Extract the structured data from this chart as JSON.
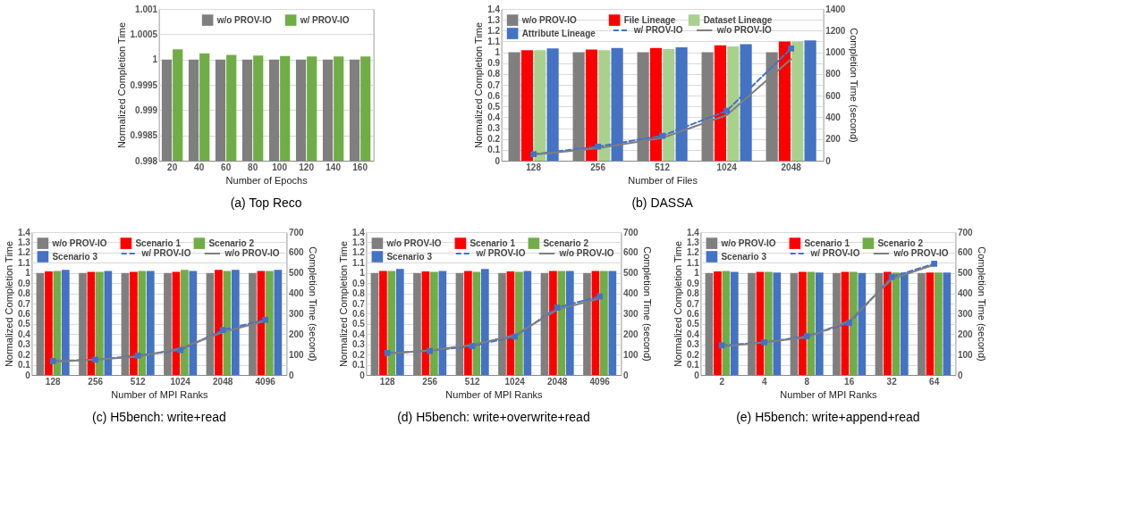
{
  "chart_data": [
    {
      "type": "bar",
      "title": "(a) Top Reco",
      "xlabel": "Number of Epochs",
      "ylabel": "Normalized Completion Time",
      "categories": [
        "20",
        "40",
        "60",
        "80",
        "100",
        "120",
        "140",
        "160"
      ],
      "series": [
        {
          "name": "w/o PROV-IO",
          "color": "#7f7f7f",
          "values": [
            1,
            1,
            1,
            1,
            1,
            1,
            1,
            1
          ]
        },
        {
          "name": "w/ PROV-IO",
          "color": "#70ad47",
          "values": [
            1.0002,
            1.00012,
            1.00009,
            1.00008,
            1.00007,
            1.00006,
            1.00006,
            1.00006
          ]
        }
      ],
      "ylim": [
        0.998,
        1.001
      ],
      "yticks": [
        0.998,
        0.9985,
        0.999,
        0.9995,
        1,
        1.0005,
        1.001
      ],
      "grid": "y",
      "legend": "top"
    },
    {
      "type": "bar",
      "title": "(b) DASSA",
      "xlabel": "Number of Files",
      "ylabel": "Normalized Completion Time",
      "y2label": "Completion Time (second)",
      "categories": [
        "128",
        "256",
        "512",
        "1024",
        "2048"
      ],
      "series": [
        {
          "name": "w/o PROV-IO",
          "color": "#7f7f7f",
          "values": [
            1,
            1,
            1,
            1,
            1
          ]
        },
        {
          "name": "File Lineage",
          "color": "#ff0000",
          "values": [
            1.02,
            1.025,
            1.04,
            1.065,
            1.1
          ]
        },
        {
          "name": "Dataset Lineage",
          "color": "#a9d18e",
          "values": [
            1.02,
            1.02,
            1.03,
            1.055,
            1.1
          ]
        },
        {
          "name": "Attribute Lineage",
          "color": "#4472c4",
          "values": [
            1.035,
            1.04,
            1.045,
            1.075,
            1.11
          ]
        },
        {
          "name": "w/ PROV-IO",
          "type": "line",
          "axis": "y2",
          "line_style": "dashed",
          "marker": "square",
          "color": "#4472c4",
          "values": [
            60,
            130,
            230,
            460,
            1035
          ]
        },
        {
          "name": "w/o PROV-IO",
          "type": "line",
          "axis": "y2",
          "line_style": "solid",
          "marker": "none",
          "color": "#7f7f7f",
          "values": [
            55,
            115,
            210,
            420,
            936
          ]
        }
      ],
      "ylim": [
        0,
        1.4
      ],
      "yticks": [
        0,
        0.1,
        0.2,
        0.3,
        0.4,
        0.5,
        0.6,
        0.7,
        0.8,
        0.9,
        1,
        1.1,
        1.2,
        1.3,
        1.4
      ],
      "y2lim": [
        0,
        1400
      ],
      "y2ticks": [
        0,
        200,
        400,
        600,
        800,
        1000,
        1200,
        1400
      ],
      "grid": "y",
      "legend": "top"
    },
    {
      "type": "bar",
      "title": "(c) H5bench: write+read",
      "xlabel": "Number of MPI Ranks",
      "ylabel": "Normalized Completion Time",
      "y2label": "Completion Time (second)",
      "categories": [
        "128",
        "256",
        "512",
        "1024",
        "2048",
        "4096"
      ],
      "series": [
        {
          "name": "w/o PROV-IO",
          "color": "#7f7f7f",
          "values": [
            1,
            1,
            1,
            1,
            1,
            1
          ]
        },
        {
          "name": "Scenario 1",
          "color": "#ff0000",
          "values": [
            1.015,
            1.01,
            1.01,
            1.01,
            1.03,
            1.02
          ]
        },
        {
          "name": "Scenario 2",
          "color": "#70ad47",
          "values": [
            1.02,
            1.01,
            1.02,
            1.03,
            1.02,
            1.02
          ]
        },
        {
          "name": "Scenario 3",
          "color": "#4472c4",
          "values": [
            1.03,
            1.02,
            1.02,
            1.02,
            1.03,
            1.03
          ]
        },
        {
          "name": "w/ PROV-IO",
          "type": "line",
          "axis": "y2",
          "line_style": "dashed",
          "marker": "square",
          "color": "#4472c4",
          "values": [
            68,
            75,
            95,
            122,
            220,
            270
          ]
        },
        {
          "name": "w/o PROV-IO",
          "type": "line",
          "axis": "y2",
          "line_style": "solid",
          "marker": "none",
          "color": "#7f7f7f",
          "values": [
            65,
            75,
            90,
            130,
            210,
            265
          ]
        }
      ],
      "ylim": [
        0,
        1.4
      ],
      "yticks": [
        0,
        0.1,
        0.2,
        0.3,
        0.4,
        0.5,
        0.6,
        0.7,
        0.8,
        0.9,
        1,
        1.1,
        1.2,
        1.3,
        1.4
      ],
      "y2lim": [
        0,
        700
      ],
      "y2ticks": [
        0,
        100,
        200,
        300,
        400,
        500,
        600,
        700
      ],
      "grid": "y",
      "legend": "top"
    },
    {
      "type": "bar",
      "title": "(d) H5bench: write+overwrite+read",
      "xlabel": "Number of MPI Ranks",
      "ylabel": "Normalized Completion Time",
      "y2label": "Completion Time (second)",
      "categories": [
        "128",
        "256",
        "512",
        "1024",
        "2048",
        "4096"
      ],
      "series": [
        {
          "name": "w/o PROV-IO",
          "color": "#7f7f7f",
          "values": [
            1,
            1,
            1,
            1,
            1,
            1
          ]
        },
        {
          "name": "Scenario 1",
          "color": "#ff0000",
          "values": [
            1.02,
            1.015,
            1.02,
            1.015,
            1.02,
            1.02
          ]
        },
        {
          "name": "Scenario 2",
          "color": "#70ad47",
          "values": [
            1.02,
            1.01,
            1.01,
            1.01,
            1.02,
            1.02
          ]
        },
        {
          "name": "Scenario 3",
          "color": "#4472c4",
          "values": [
            1.04,
            1.02,
            1.04,
            1.02,
            1.02,
            1.02
          ]
        },
        {
          "name": "w/ PROV-IO",
          "type": "line",
          "axis": "y2",
          "line_style": "dashed",
          "marker": "square",
          "color": "#4472c4",
          "values": [
            108,
            118,
            142,
            188,
            330,
            385
          ]
        },
        {
          "name": "w/o PROV-IO",
          "type": "line",
          "axis": "y2",
          "line_style": "solid",
          "marker": "none",
          "color": "#7f7f7f",
          "values": [
            105,
            120,
            148,
            195,
            320,
            375
          ]
        }
      ],
      "ylim": [
        0,
        1.4
      ],
      "yticks": [
        0,
        0.1,
        0.2,
        0.3,
        0.4,
        0.5,
        0.6,
        0.7,
        0.8,
        0.9,
        1,
        1.1,
        1.2,
        1.3,
        1.4
      ],
      "y2lim": [
        0,
        700
      ],
      "y2ticks": [
        0,
        100,
        200,
        300,
        400,
        500,
        600,
        700
      ],
      "grid": "y",
      "legend": "top"
    },
    {
      "type": "bar",
      "title": "(e) H5bench: write+append+read",
      "xlabel": "Number of MPI Ranks",
      "ylabel": "Normalized Completion Time",
      "y2label": "Completion Time (second)",
      "categories": [
        "2",
        "4",
        "8",
        "16",
        "32",
        "64"
      ],
      "series": [
        {
          "name": "w/o PROV-IO",
          "color": "#7f7f7f",
          "values": [
            1,
            1,
            1,
            1,
            1,
            1
          ]
        },
        {
          "name": "Scenario 1",
          "color": "#ff0000",
          "values": [
            1.015,
            1.01,
            1.01,
            1.01,
            1.01,
            1.005
          ]
        },
        {
          "name": "Scenario 2",
          "color": "#70ad47",
          "values": [
            1.02,
            1.01,
            1.01,
            1.01,
            1.005,
            1.005
          ]
        },
        {
          "name": "Scenario 3",
          "color": "#4472c4",
          "values": [
            1.01,
            1.005,
            1.005,
            1,
            1.005,
            1.005
          ]
        },
        {
          "name": "w/ PROV-IO",
          "type": "line",
          "axis": "y2",
          "line_style": "dashed",
          "marker": "square",
          "color": "#4472c4",
          "values": [
            145,
            160,
            190,
            255,
            480,
            545
          ]
        },
        {
          "name": "w/o PROV-IO",
          "type": "line",
          "axis": "y2",
          "line_style": "solid",
          "marker": "none",
          "color": "#7f7f7f",
          "values": [
            140,
            160,
            185,
            265,
            470,
            540
          ]
        }
      ],
      "ylim": [
        0,
        1.4
      ],
      "yticks": [
        0,
        0.1,
        0.2,
        0.3,
        0.4,
        0.5,
        0.6,
        0.7,
        0.8,
        0.9,
        1,
        1.1,
        1.2,
        1.3,
        1.4
      ],
      "y2lim": [
        0,
        700
      ],
      "y2ticks": [
        0,
        100,
        200,
        300,
        400,
        500,
        600,
        700
      ],
      "grid": "y",
      "legend": "top"
    }
  ]
}
